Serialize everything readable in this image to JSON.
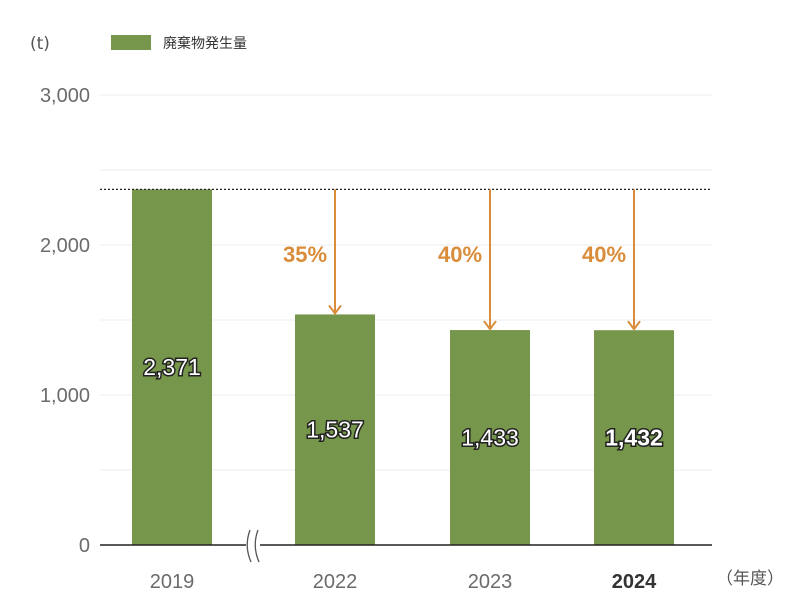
{
  "chart_data": {
    "type": "bar",
    "ylabel": "(t)",
    "xunit": "（年度）",
    "ylim": [
      0,
      3000
    ],
    "yticks": [
      0,
      1000,
      2000,
      3000
    ],
    "ytick_labels": [
      "0",
      "1,000",
      "2,000",
      "3,000"
    ],
    "categories": [
      "2019",
      "2022",
      "2023",
      "2024"
    ],
    "series": [
      {
        "name": "廃棄物発生量",
        "values": [
          2371,
          1537,
          1433,
          1432
        ]
      }
    ],
    "data_labels": [
      "2,371",
      "1,537",
      "1,433",
      "1,432"
    ],
    "reductions": [
      {
        "category": "2022",
        "label": "35%"
      },
      {
        "category": "2023",
        "label": "40%"
      },
      {
        "category": "2024",
        "label": "40%"
      }
    ],
    "axis_break_between": [
      "2019",
      "2022"
    ],
    "reference_line_value": 2371,
    "legend_position": "top-left",
    "grid": true,
    "colors": {
      "bar": "#76964b",
      "arrow": "#d98c3a",
      "grid": "#eeeeee",
      "axis": "#222222"
    },
    "highlight_category": "2024"
  }
}
